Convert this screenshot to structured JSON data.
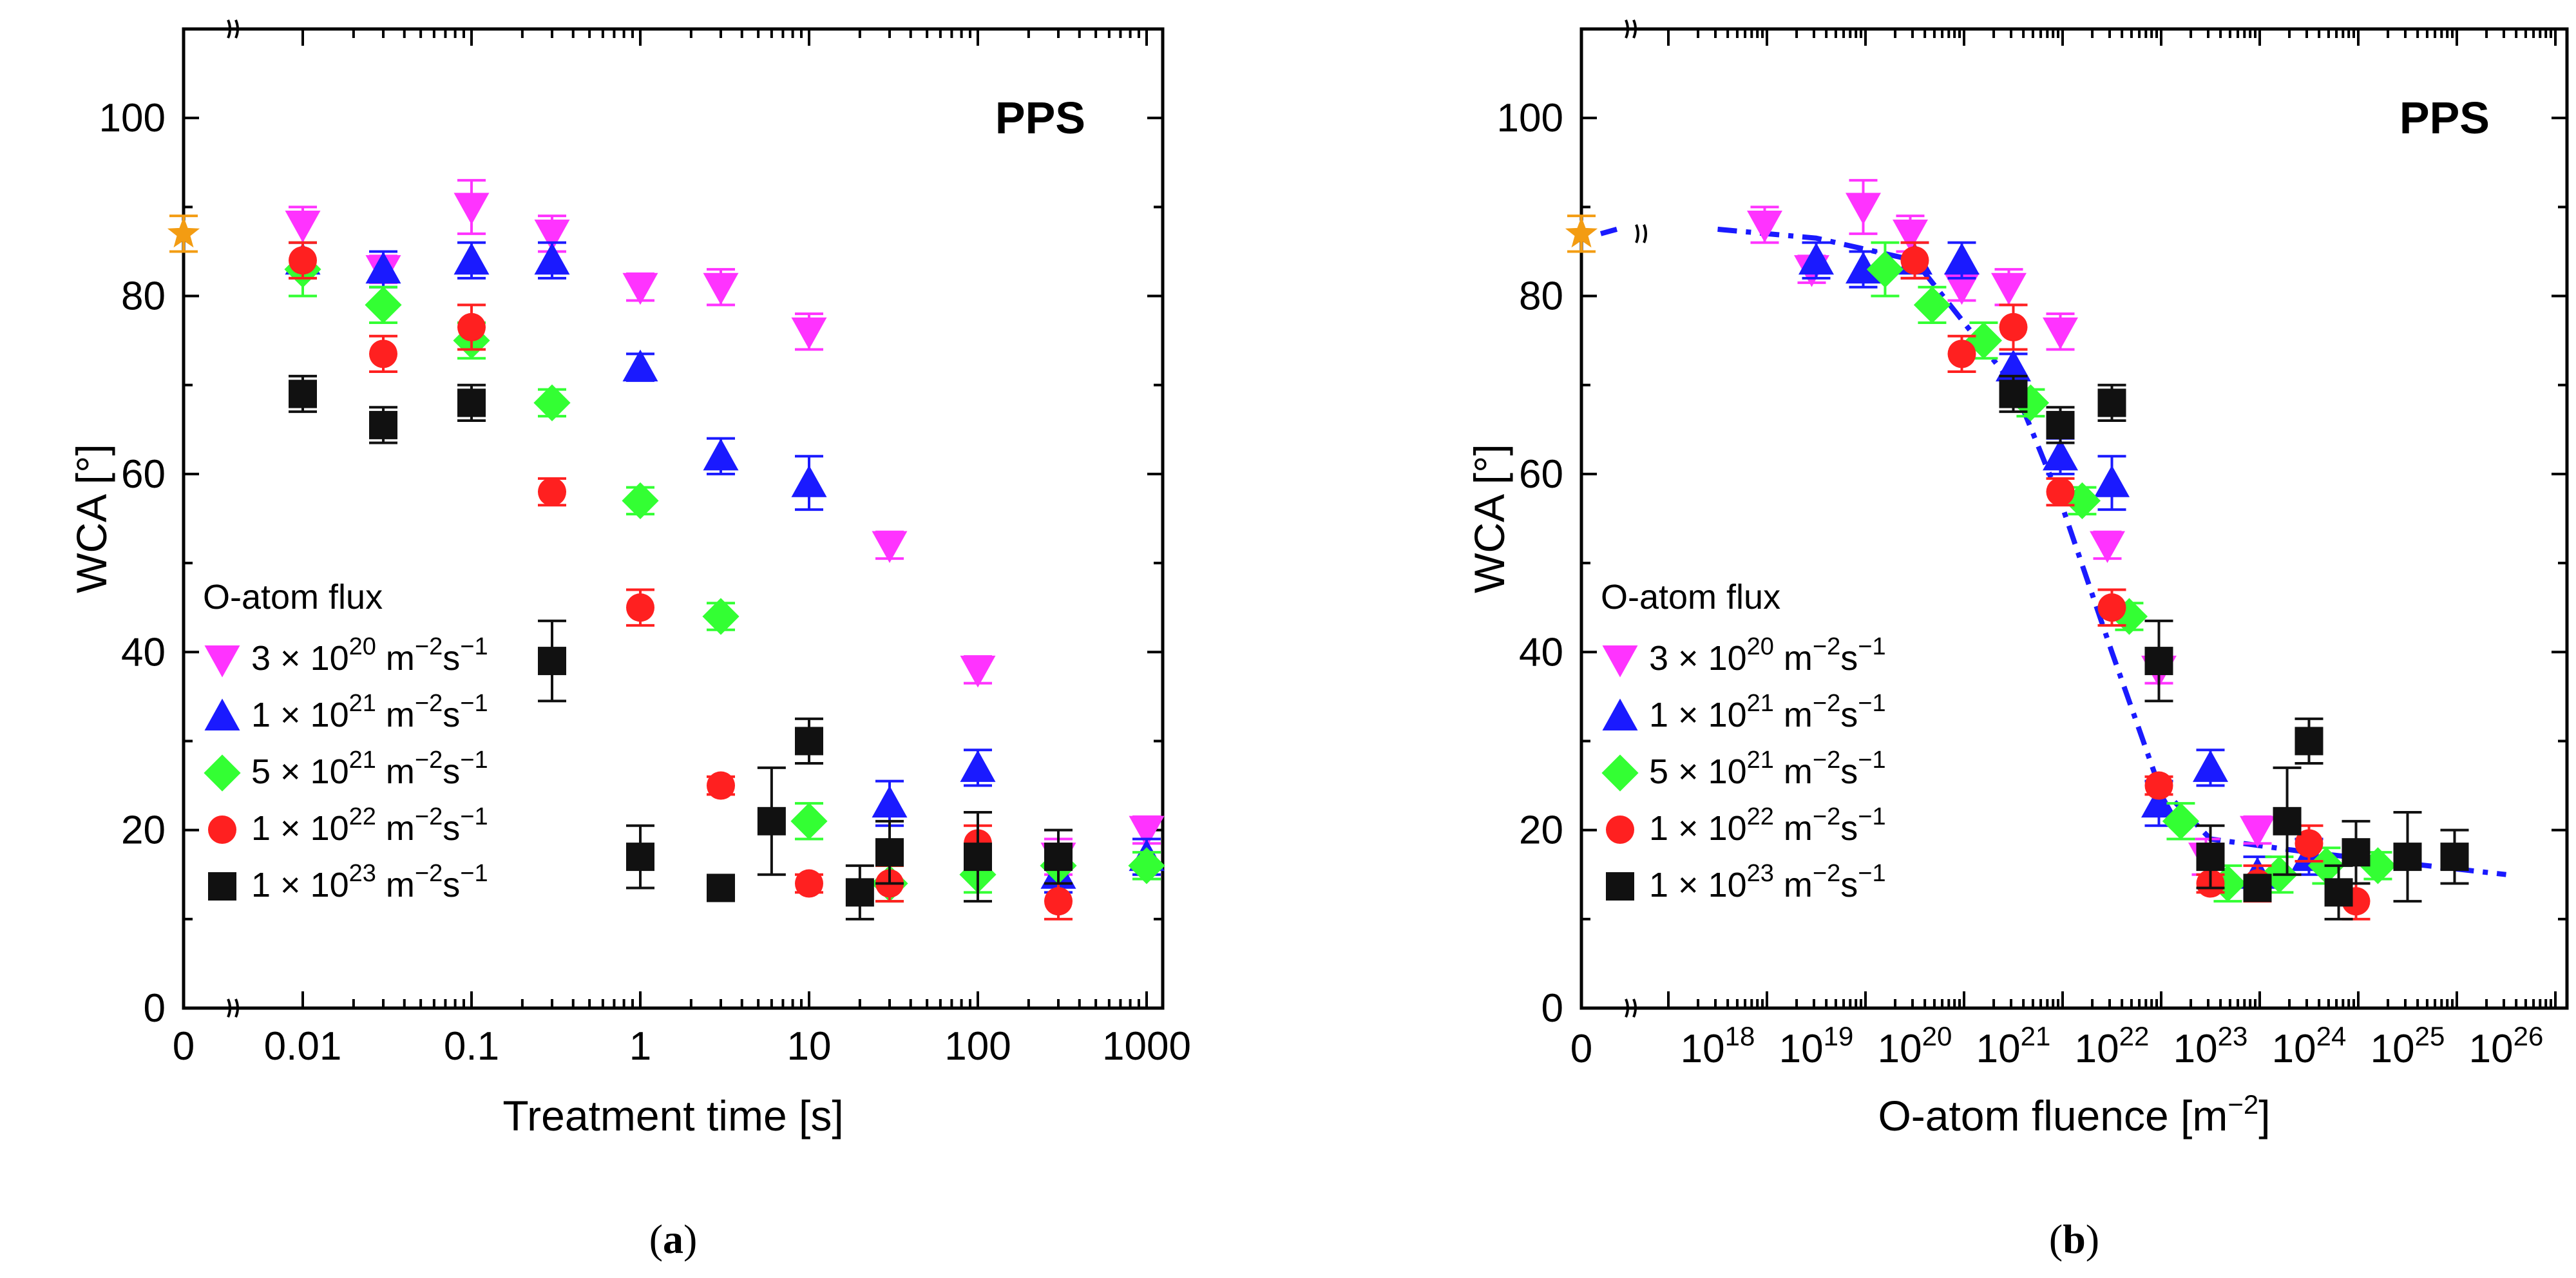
{
  "chart_data": [
    {
      "type": "scatter",
      "panel_label": "(a)",
      "title": "PPS",
      "xlabel": "Treatment time [s]",
      "ylabel": "WCA [°]",
      "x_scale": "log",
      "x_ticks": [
        "0",
        "0.01",
        "0.1",
        "1",
        "10",
        "100",
        "1000"
      ],
      "y_ticks": [
        "0",
        "20",
        "40",
        "60",
        "80",
        "100"
      ],
      "ylim": [
        0,
        110
      ],
      "legend_title": "O-atom flux",
      "legend_placement": "left-center",
      "untreated": {
        "x": 0,
        "y": 87,
        "err": 2,
        "color": "#f39c12",
        "marker": "star"
      },
      "series": [
        {
          "name": "3 × 10^20 m^-2s^-1",
          "base": "3 × 10",
          "exp": "20",
          "color": "#ff33ff",
          "marker": "triangle-down",
          "x": [
            0.01,
            0.03,
            0.1,
            0.3,
            1,
            3,
            10,
            30,
            100,
            300,
            1000
          ],
          "y": [
            88,
            83,
            90,
            87,
            81,
            81,
            76,
            52,
            38,
            17,
            20
          ],
          "err": [
            2,
            1.5,
            3,
            2,
            1.5,
            2,
            2,
            1.5,
            1.5,
            2,
            1.5
          ]
        },
        {
          "name": "1 × 10^21 m^-2s^-1",
          "base": "1 × 10",
          "exp": "21",
          "color": "#1a1aff",
          "marker": "triangle-up",
          "x": [
            0.01,
            0.03,
            0.1,
            0.3,
            1,
            3,
            10,
            30,
            100,
            300,
            1000
          ],
          "y": [
            84,
            83,
            84,
            84,
            72,
            62,
            59,
            23,
            27,
            15,
            17
          ],
          "err": [
            2,
            2,
            2,
            2,
            1.5,
            2,
            3,
            2.5,
            2,
            2,
            2
          ]
        },
        {
          "name": "5 × 10^21 m^-2s^-1",
          "base": "5 × 10",
          "exp": "21",
          "color": "#33ff33",
          "marker": "diamond",
          "x": [
            0.01,
            0.03,
            0.1,
            0.3,
            1,
            3,
            10,
            30,
            100,
            300,
            1000
          ],
          "y": [
            83,
            79,
            75,
            68,
            57,
            44,
            21,
            14,
            15,
            16,
            16
          ],
          "err": [
            3,
            2,
            2,
            1.5,
            1.5,
            1.5,
            2,
            2,
            2,
            2,
            1.5
          ]
        },
        {
          "name": "1 × 10^22 m^-2s^-1",
          "base": "1 × 10",
          "exp": "22",
          "color": "#ff2020",
          "marker": "circle",
          "x": [
            0.01,
            0.03,
            0.1,
            0.3,
            1,
            3,
            10,
            30,
            100,
            300
          ],
          "y": [
            84,
            73.5,
            76.5,
            58,
            45,
            25,
            14,
            14,
            18.5,
            12
          ],
          "err": [
            2,
            2,
            2.5,
            1.5,
            2,
            1,
            1,
            2,
            2,
            2
          ]
        },
        {
          "name": "1 × 10^23 m^-2s^-1",
          "base": "1 × 10",
          "exp": "23",
          "color": "#111111",
          "marker": "square",
          "x": [
            0.01,
            0.03,
            0.1,
            0.3,
            1,
            3,
            6,
            10,
            20,
            30,
            100,
            300
          ],
          "y": [
            69,
            65.5,
            68,
            39,
            17,
            13.5,
            21,
            30,
            13,
            17.5,
            17,
            17
          ],
          "err": [
            2,
            2,
            2,
            4.5,
            3.5,
            1,
            6,
            2.5,
            3,
            3.5,
            5,
            3
          ]
        }
      ]
    },
    {
      "type": "scatter",
      "panel_label": "(b)",
      "title": "PPS",
      "xlabel": "O-atom fluence [m^-2]",
      "xlabel_base": "O-atom fluence [m",
      "xlabel_exp": "−2",
      "xlabel_end": "]",
      "ylabel": "WCA [°]",
      "x_scale": "log",
      "x_ticks": [
        {
          "base": "0",
          "exp": ""
        },
        {
          "base": "10",
          "exp": "18"
        },
        {
          "base": "10",
          "exp": "19"
        },
        {
          "base": "10",
          "exp": "20"
        },
        {
          "base": "10",
          "exp": "21"
        },
        {
          "base": "10",
          "exp": "22"
        },
        {
          "base": "10",
          "exp": "23"
        },
        {
          "base": "10",
          "exp": "24"
        },
        {
          "base": "10",
          "exp": "25"
        },
        {
          "base": "10",
          "exp": "26"
        }
      ],
      "y_ticks": [
        "0",
        "20",
        "40",
        "60",
        "80",
        "100"
      ],
      "ylim": [
        0,
        110
      ],
      "legend_title": "O-atom flux",
      "legend_placement": "left-center",
      "untreated": {
        "x": 0,
        "y": 87,
        "err": 2,
        "color": "#f39c12",
        "marker": "star"
      },
      "fit_line": {
        "color": "#1a1aff",
        "x": [
          1e+18,
          1e+19,
          1e+20,
          1e+21,
          3e+21,
          1e+22,
          3e+22,
          1e+23,
          1e+24,
          1e+26
        ],
        "y": [
          87.5,
          86.5,
          84,
          70,
          57,
          40,
          25,
          19,
          17.5,
          15
        ]
      },
      "series": [
        {
          "name": "3 × 10^20 m^-2s^-1",
          "base": "3 × 10",
          "exp": "20",
          "color": "#ff33ff",
          "marker": "triangle-down",
          "x": [
            3e+18,
            9e+18,
            3e+19,
            9e+19,
            3e+20,
            9e+20,
            3e+21,
            9e+21,
            3e+22,
            9e+22,
            3e+23
          ],
          "y": [
            88,
            83,
            90,
            87,
            81,
            81,
            76,
            52,
            38,
            17,
            20
          ],
          "err": [
            2,
            1.5,
            3,
            2,
            1.5,
            2,
            2,
            1.5,
            1.5,
            2,
            1.5
          ]
        },
        {
          "name": "1 × 10^21 m^-2s^-1",
          "base": "1 × 10",
          "exp": "21",
          "color": "#1a1aff",
          "marker": "triangle-up",
          "x": [
            1e+19,
            3e+19,
            1e+20,
            3e+20,
            1e+21,
            3e+21,
            1e+22,
            3e+22,
            1e+23,
            3e+23,
            1e+24
          ],
          "y": [
            84,
            83,
            84,
            84,
            72,
            62,
            59,
            23,
            27,
            15,
            17
          ],
          "err": [
            2,
            2,
            2,
            2,
            1.5,
            2,
            3,
            2.5,
            2,
            2,
            2
          ]
        },
        {
          "name": "5 × 10^21 m^-2s^-1",
          "base": "5 × 10",
          "exp": "21",
          "color": "#33ff33",
          "marker": "diamond",
          "x": [
            5e+19,
            1.5e+20,
            5e+20,
            1.5e+21,
            5e+21,
            1.5e+22,
            5e+22,
            1.5e+23,
            5e+23,
            1.5e+24,
            5e+24
          ],
          "y": [
            83,
            79,
            75,
            68,
            57,
            44,
            21,
            14,
            15,
            16,
            16
          ],
          "err": [
            3,
            2,
            2,
            1.5,
            1.5,
            1.5,
            2,
            2,
            2,
            2,
            1.5
          ]
        },
        {
          "name": "1 × 10^22 m^-2s^-1",
          "base": "1 × 10",
          "exp": "22",
          "color": "#ff2020",
          "marker": "circle",
          "x": [
            1e+20,
            3e+20,
            1e+21,
            3e+21,
            1e+22,
            3e+22,
            1e+23,
            3e+23,
            1e+24,
            3e+24
          ],
          "y": [
            84,
            73.5,
            76.5,
            58,
            45,
            25,
            14,
            14,
            18.5,
            12
          ],
          "err": [
            2,
            2,
            2.5,
            1.5,
            2,
            1,
            1,
            2,
            2,
            2
          ]
        },
        {
          "name": "1 × 10^23 m^-2s^-1",
          "base": "1 × 10",
          "exp": "23",
          "color": "#111111",
          "marker": "square",
          "x": [
            1e+21,
            3e+21,
            1e+22,
            3e+22,
            1e+23,
            3e+23,
            6e+23,
            1e+24,
            2e+24,
            3e+24,
            1e+25,
            3e+25
          ],
          "y": [
            69,
            65.5,
            68,
            39,
            17,
            13.5,
            21,
            30,
            13,
            17.5,
            17,
            17
          ],
          "err": [
            2,
            2,
            2,
            4.5,
            3.5,
            1,
            6,
            2.5,
            3,
            3.5,
            5,
            3
          ]
        }
      ]
    }
  ]
}
